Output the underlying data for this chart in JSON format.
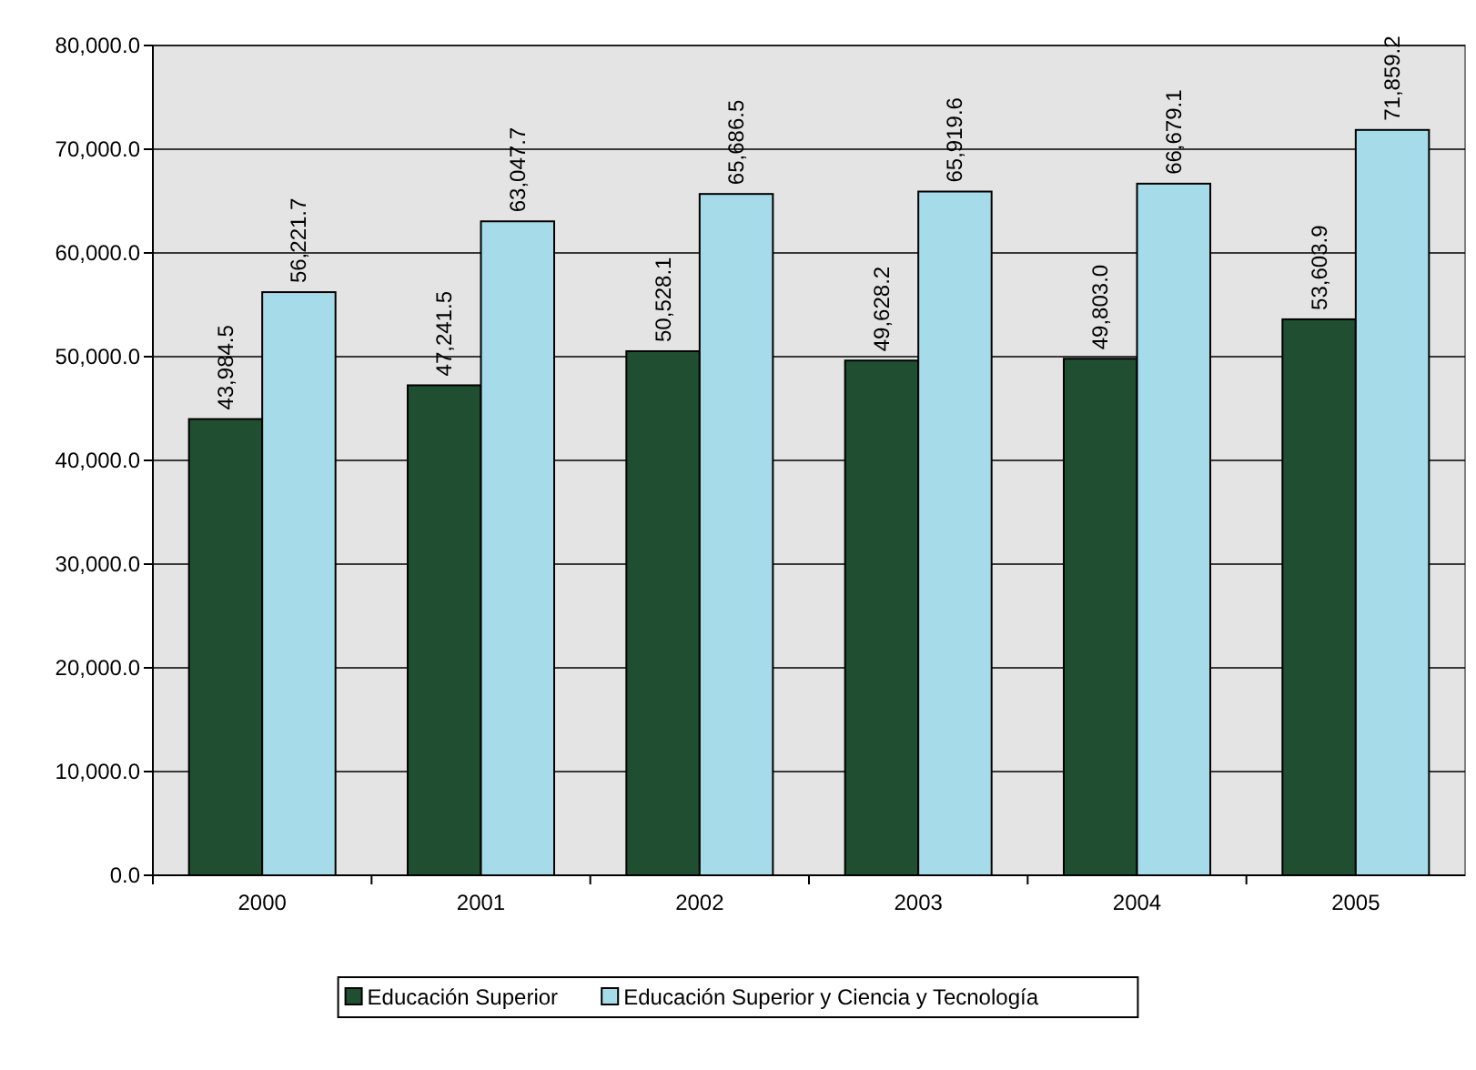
{
  "chart_data": {
    "type": "bar",
    "categories": [
      "2000",
      "2001",
      "2002",
      "2003",
      "2004",
      "2005"
    ],
    "series": [
      {
        "name": "Educación Superior",
        "color": "#1f4f30",
        "values": [
          43984.5,
          47241.5,
          50528.1,
          49628.2,
          49803.0,
          53603.9
        ],
        "value_labels": [
          "43,984.5",
          "47,241.5",
          "50,528.1",
          "49,628.2",
          "49,803.0",
          "53,603.9"
        ]
      },
      {
        "name": "Educación Superior y Ciencia y Tecnología",
        "color": "#a6dcea",
        "values": [
          56221.7,
          63047.7,
          65686.5,
          65919.6,
          66679.1,
          71859.2
        ],
        "value_labels": [
          "56,221.7",
          "63,047.7",
          "65,686.5",
          "65,919.6",
          "66,679.1",
          "71,859.2"
        ]
      }
    ],
    "ylim": [
      0,
      80000
    ],
    "yticks": [
      {
        "value": 0,
        "label": "0.0"
      },
      {
        "value": 10000,
        "label": "10,000.0"
      },
      {
        "value": 20000,
        "label": "20,000.0"
      },
      {
        "value": 30000,
        "label": "30,000.0"
      },
      {
        "value": 40000,
        "label": "40,000.0"
      },
      {
        "value": 50000,
        "label": "50,000.0"
      },
      {
        "value": 60000,
        "label": "60,000.0"
      },
      {
        "value": 70000,
        "label": "70,000.0"
      },
      {
        "value": 80000,
        "label": "80,000.0"
      }
    ],
    "grid": "y",
    "legend": "bottom"
  }
}
